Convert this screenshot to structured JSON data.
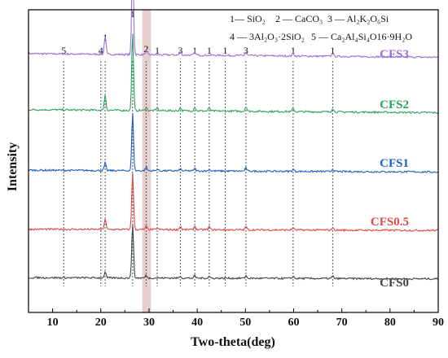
{
  "chart_data": {
    "type": "line",
    "xlabel": "Two-theta(deg)",
    "ylabel": "Intensity",
    "xlim": [
      5,
      90
    ],
    "x_ticks": [
      "10",
      "20",
      "30",
      "40",
      "50",
      "60",
      "70",
      "80",
      "90"
    ],
    "y_ticks": "none",
    "grid": false,
    "highlight_band": {
      "x_range": [
        28.6,
        30.4
      ],
      "color": "#e6cfcf"
    },
    "phase_legend": [
      {
        "id": "1",
        "text": "1— SiO₂"
      },
      {
        "id": "2",
        "text": "2 — CaCO₃"
      },
      {
        "id": "3",
        "text": "3 — Al₂K₂O₆Si"
      },
      {
        "id": "4",
        "text": "4 —  3Al₂O₃·2SiO₂"
      },
      {
        "id": "5",
        "text": "5 — Ca₂Al₄Si₄O16·9H₂O"
      }
    ],
    "phase_markers": [
      {
        "x": 12.3,
        "label": "5"
      },
      {
        "x": 20.0,
        "label": "4"
      },
      {
        "x": 20.9,
        "label": "1"
      },
      {
        "x": 26.6,
        "label": "1"
      },
      {
        "x": 29.4,
        "label": "2"
      },
      {
        "x": 31.7,
        "label": "1"
      },
      {
        "x": 36.5,
        "label": "3"
      },
      {
        "x": 39.5,
        "label": "1"
      },
      {
        "x": 42.5,
        "label": "1"
      },
      {
        "x": 45.8,
        "label": "1"
      },
      {
        "x": 50.1,
        "label": "3"
      },
      {
        "x": 59.9,
        "label": "1"
      },
      {
        "x": 68.1,
        "label": "1"
      }
    ],
    "series": [
      {
        "name": "CFS3",
        "color": "#9b6fd6",
        "baseline": 0.855,
        "baseline_drift": -0.012,
        "peaks": [
          {
            "x": 20.9,
            "height": 0.06
          },
          {
            "x": 26.6,
            "height": 0.34
          },
          {
            "x": 29.4,
            "height": 0.012
          },
          {
            "x": 36.5,
            "height": 0.01
          },
          {
            "x": 39.5,
            "height": 0.01
          },
          {
            "x": 50.1,
            "height": 0.012
          },
          {
            "x": 59.9,
            "height": 0.008
          },
          {
            "x": 68.1,
            "height": 0.01
          }
        ]
      },
      {
        "name": "CFS2",
        "color": "#2aa05a",
        "baseline": 0.67,
        "baseline_drift": -0.01,
        "peaks": [
          {
            "x": 20.9,
            "height": 0.05
          },
          {
            "x": 26.6,
            "height": 0.26
          },
          {
            "x": 29.4,
            "height": 0.01
          },
          {
            "x": 31.7,
            "height": 0.008
          },
          {
            "x": 36.5,
            "height": 0.01
          },
          {
            "x": 39.5,
            "height": 0.012
          },
          {
            "x": 42.5,
            "height": 0.01
          },
          {
            "x": 50.1,
            "height": 0.016
          },
          {
            "x": 59.9,
            "height": 0.01
          },
          {
            "x": 68.1,
            "height": 0.012
          }
        ]
      },
      {
        "name": "CFS1",
        "color": "#1f5fbf",
        "baseline": 0.47,
        "baseline_drift": -0.006,
        "peaks": [
          {
            "x": 20.9,
            "height": 0.025
          },
          {
            "x": 26.6,
            "height": 0.19
          },
          {
            "x": 29.4,
            "height": 0.012
          },
          {
            "x": 31.7,
            "height": 0.006
          },
          {
            "x": 36.5,
            "height": 0.006
          },
          {
            "x": 39.5,
            "height": 0.008
          },
          {
            "x": 42.5,
            "height": 0.006
          },
          {
            "x": 50.1,
            "height": 0.01
          },
          {
            "x": 59.9,
            "height": 0.007
          },
          {
            "x": 68.1,
            "height": 0.008
          }
        ]
      },
      {
        "name": "CFS0.5",
        "color": "#e04848",
        "baseline": 0.275,
        "baseline_drift": -0.004,
        "peaks": [
          {
            "x": 20.9,
            "height": 0.035
          },
          {
            "x": 26.6,
            "height": 0.19
          },
          {
            "x": 29.4,
            "height": 0.01
          },
          {
            "x": 31.7,
            "height": 0.006
          },
          {
            "x": 36.5,
            "height": 0.012
          },
          {
            "x": 39.5,
            "height": 0.012
          },
          {
            "x": 42.5,
            "height": 0.01
          },
          {
            "x": 50.1,
            "height": 0.012
          },
          {
            "x": 59.9,
            "height": 0.007
          },
          {
            "x": 68.1,
            "height": 0.008
          }
        ]
      },
      {
        "name": "CFS0",
        "color": "#444444",
        "baseline": 0.115,
        "baseline_drift": -0.004,
        "peaks": [
          {
            "x": 20.9,
            "height": 0.02
          },
          {
            "x": 26.6,
            "height": 0.18
          },
          {
            "x": 29.4,
            "height": 0.008
          },
          {
            "x": 36.5,
            "height": 0.006
          },
          {
            "x": 39.5,
            "height": 0.008
          },
          {
            "x": 42.5,
            "height": 0.006
          },
          {
            "x": 50.1,
            "height": 0.008
          },
          {
            "x": 59.9,
            "height": 0.007
          },
          {
            "x": 68.1,
            "height": 0.008
          }
        ]
      }
    ]
  }
}
